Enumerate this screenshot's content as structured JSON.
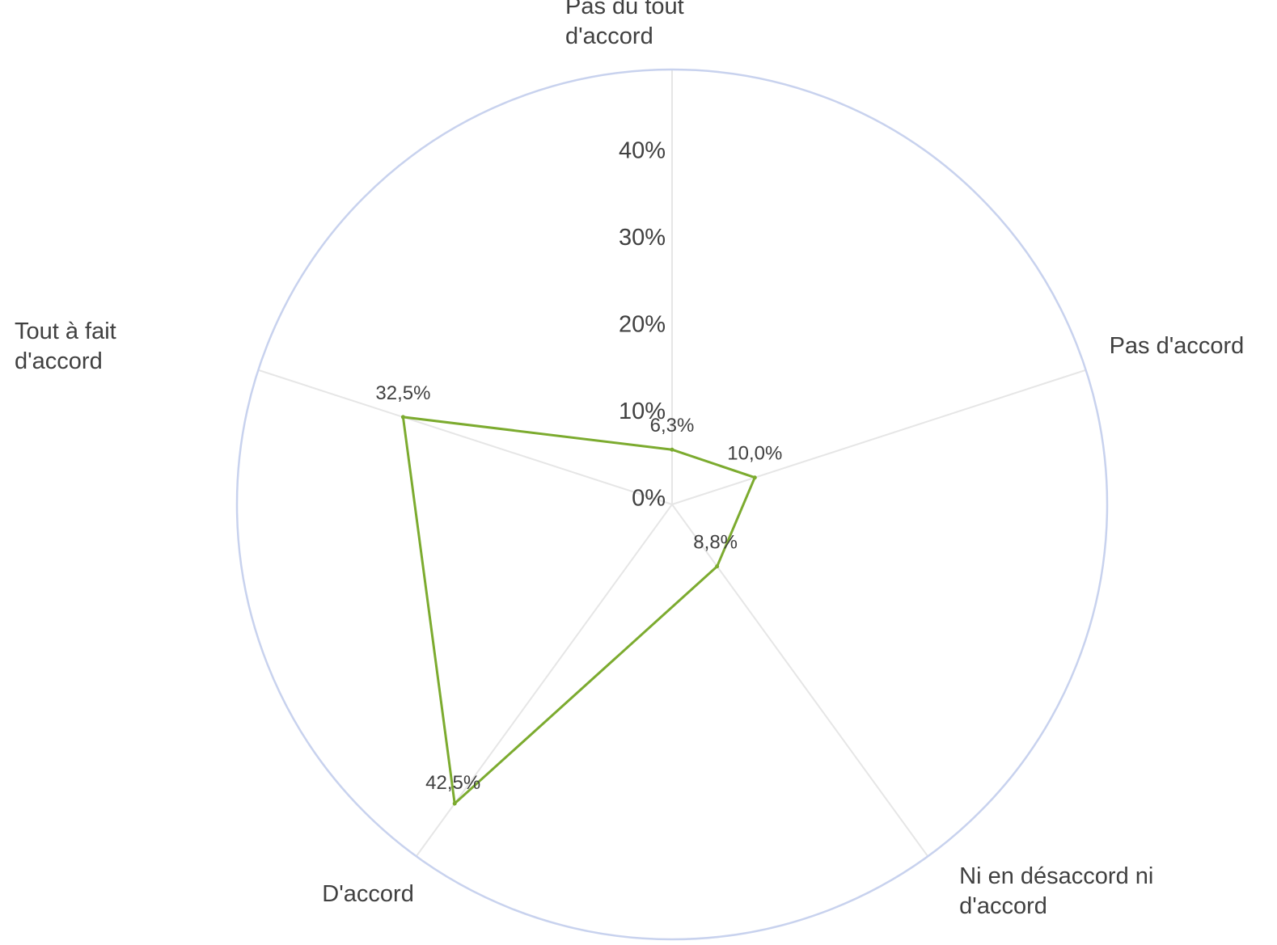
{
  "chart_data": {
    "type": "radar",
    "categories": [
      "Pas du tout d'accord",
      "Pas d'accord",
      "Ni en désaccord ni d'accord",
      "D'accord",
      "Tout à fait d'accord"
    ],
    "category_label_lines": [
      [
        "Pas du tout",
        "d'accord"
      ],
      [
        "Pas d'accord"
      ],
      [
        "Ni en désaccord ni",
        "d'accord"
      ],
      [
        "D'accord"
      ],
      [
        "Tout à fait",
        "d'accord"
      ]
    ],
    "values": [
      6.3,
      10.0,
      8.8,
      42.5,
      32.5
    ],
    "data_labels": [
      "6,3%",
      "10,0%",
      "8,8%",
      "42,5%",
      "32,5%"
    ],
    "radial_ticks": [
      0,
      10,
      20,
      30,
      40
    ],
    "radial_tick_labels": [
      "0%",
      "10%",
      "20%",
      "30%",
      "40%"
    ],
    "rmax": 50,
    "colors": {
      "series_line": "#7cab2f",
      "outer_circle": "#c8d2ee",
      "spokes": "#e6e6e6",
      "text": "#404040"
    }
  }
}
